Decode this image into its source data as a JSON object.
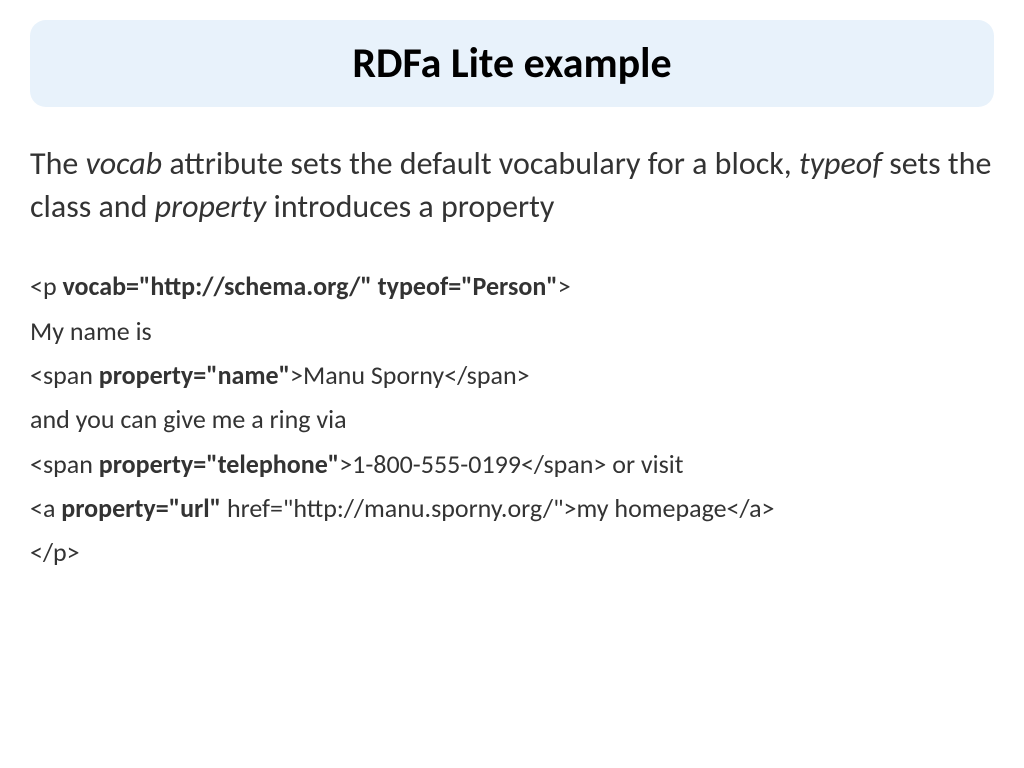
{
  "title": "RDFa Lite example",
  "description": {
    "prefix": "The ",
    "vocab": "vocab",
    "mid1": " attribute sets the default vocabulary for a block, ",
    "typeof": "typeof",
    "mid2": " sets the class and ",
    "property": "property",
    "suffix": " introduces a property"
  },
  "code": {
    "line1_open": "<p ",
    "line1_attrs": "vocab=\"http://schema.org/\" typeof=\"Person\"",
    "line1_close": ">",
    "line2": " My name is",
    "line3_open": " <span ",
    "line3_attr": "property=\"name\"",
    "line3_rest": ">Manu Sporny</span>",
    "line4": " and you can give me a ring via",
    "line5_open": " <span ",
    "line5_attr": "property=\"telephone\"",
    "line5_rest": ">1-800-555-0199</span> or visit",
    "line6_open": " <a ",
    "line6_attr": "property=\"url\"",
    "line6_rest": " href=\"http://manu.sporny.org/\">my homepage</a>",
    "line7": "</p>"
  },
  "colors": {
    "title_bg": "#e8f2fb",
    "text": "#333333",
    "page_bg": "#ffffff"
  },
  "typography": {
    "title_size": 42,
    "description_size": 32,
    "code_size": 26
  }
}
